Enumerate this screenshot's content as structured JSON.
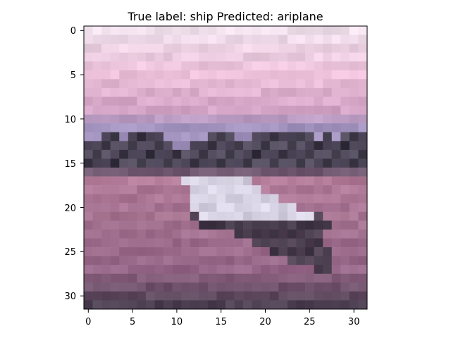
{
  "figure": {
    "title": "True label: ship Predicted: ariplane"
  },
  "image": {
    "description_tokens": [
      "pink sky",
      "dark rocky horizon",
      "white boat hull",
      "mauve water"
    ],
    "grid_size": 32,
    "palette": {
      "sky_top": "#f5e6f2",
      "sky_mid": "#f2c6df",
      "sky_low": "#d8a9cb",
      "horizon_band": "#a89ac4",
      "rocks_dark": "#3f3a48",
      "rocks_mid": "#5b5366",
      "water_light": "#b7819e",
      "water_mid": "#9c6d8e",
      "water_dark": "#6f586e",
      "bottom_dark": "#54475a",
      "boat_white": "#e7e3f2",
      "boat_shadow": "#4a404f"
    }
  },
  "axes": {
    "x_ticks": [
      "0",
      "5",
      "10",
      "15",
      "20",
      "25",
      "30"
    ],
    "y_ticks": [
      "0",
      "5",
      "10",
      "15",
      "20",
      "25",
      "30"
    ]
  }
}
